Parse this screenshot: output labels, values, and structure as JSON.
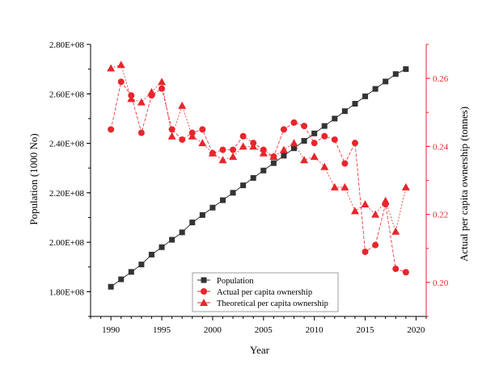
{
  "chart_data": {
    "type": "line",
    "xlabel": "Year",
    "ylabel_left": "Population (1000 No)",
    "ylabel_right": "Actual per capita ownership (tonnes)",
    "x_ticks": [
      "1990",
      "1995",
      "2000",
      "2005",
      "2010",
      "2015",
      "2020"
    ],
    "x_range": [
      1988,
      2021
    ],
    "y_left_ticks": [
      "1.80E+08",
      "2.00E+08",
      "2.20E+08",
      "2.40E+08",
      "2.60E+08",
      "2.80E+08"
    ],
    "y_left_range": [
      170000000,
      280000000
    ],
    "y_right_ticks": [
      "0.20",
      "0.22",
      "0.24",
      "0.26"
    ],
    "y_right_range": [
      0.19,
      0.27
    ],
    "grid": false,
    "legend_position": "bottom-center",
    "colors": {
      "population": "#333333",
      "actual": "#e8262c",
      "theoretical": "#e8262c",
      "right_axis": "#e8262c"
    },
    "x": [
      1990,
      1991,
      1992,
      1993,
      1994,
      1995,
      1996,
      1997,
      1998,
      1999,
      2000,
      2001,
      2002,
      2003,
      2004,
      2005,
      2006,
      2007,
      2008,
      2009,
      2010,
      2011,
      2012,
      2013,
      2014,
      2015,
      2016,
      2017,
      2018,
      2019
    ],
    "series": [
      {
        "name": "Population",
        "axis": "left",
        "marker": "square",
        "values": [
          182000000,
          185000000,
          188000000,
          191000000,
          195000000,
          198000000,
          201000000,
          204000000,
          208000000,
          211000000,
          214000000,
          217000000,
          220000000,
          223000000,
          226000000,
          229000000,
          232000000,
          235000000,
          238000000,
          241000000,
          244000000,
          247000000,
          250000000,
          253000000,
          256000000,
          259000000,
          262000000,
          265000000,
          268000000,
          270000000
        ]
      },
      {
        "name": "Actual per capita ownership",
        "axis": "right",
        "marker": "circle",
        "values": [
          0.245,
          0.259,
          0.255,
          0.244,
          0.255,
          0.257,
          0.245,
          0.242,
          0.244,
          0.245,
          0.238,
          0.239,
          0.239,
          0.243,
          0.241,
          0.239,
          0.237,
          0.245,
          0.247,
          0.246,
          0.241,
          0.243,
          0.242,
          0.235,
          0.241,
          0.209,
          0.211,
          0.223,
          0.204,
          0.203
        ]
      },
      {
        "name": "Theoretical per capita ownership",
        "axis": "right",
        "marker": "triangle",
        "values": [
          0.263,
          0.264,
          0.254,
          0.253,
          0.256,
          0.259,
          0.243,
          0.252,
          0.243,
          0.241,
          0.238,
          0.236,
          0.237,
          0.24,
          0.24,
          0.238,
          0.237,
          0.239,
          0.241,
          0.236,
          0.237,
          0.234,
          0.228,
          0.228,
          0.221,
          0.223,
          0.22,
          0.224,
          0.215,
          0.228
        ]
      }
    ]
  }
}
